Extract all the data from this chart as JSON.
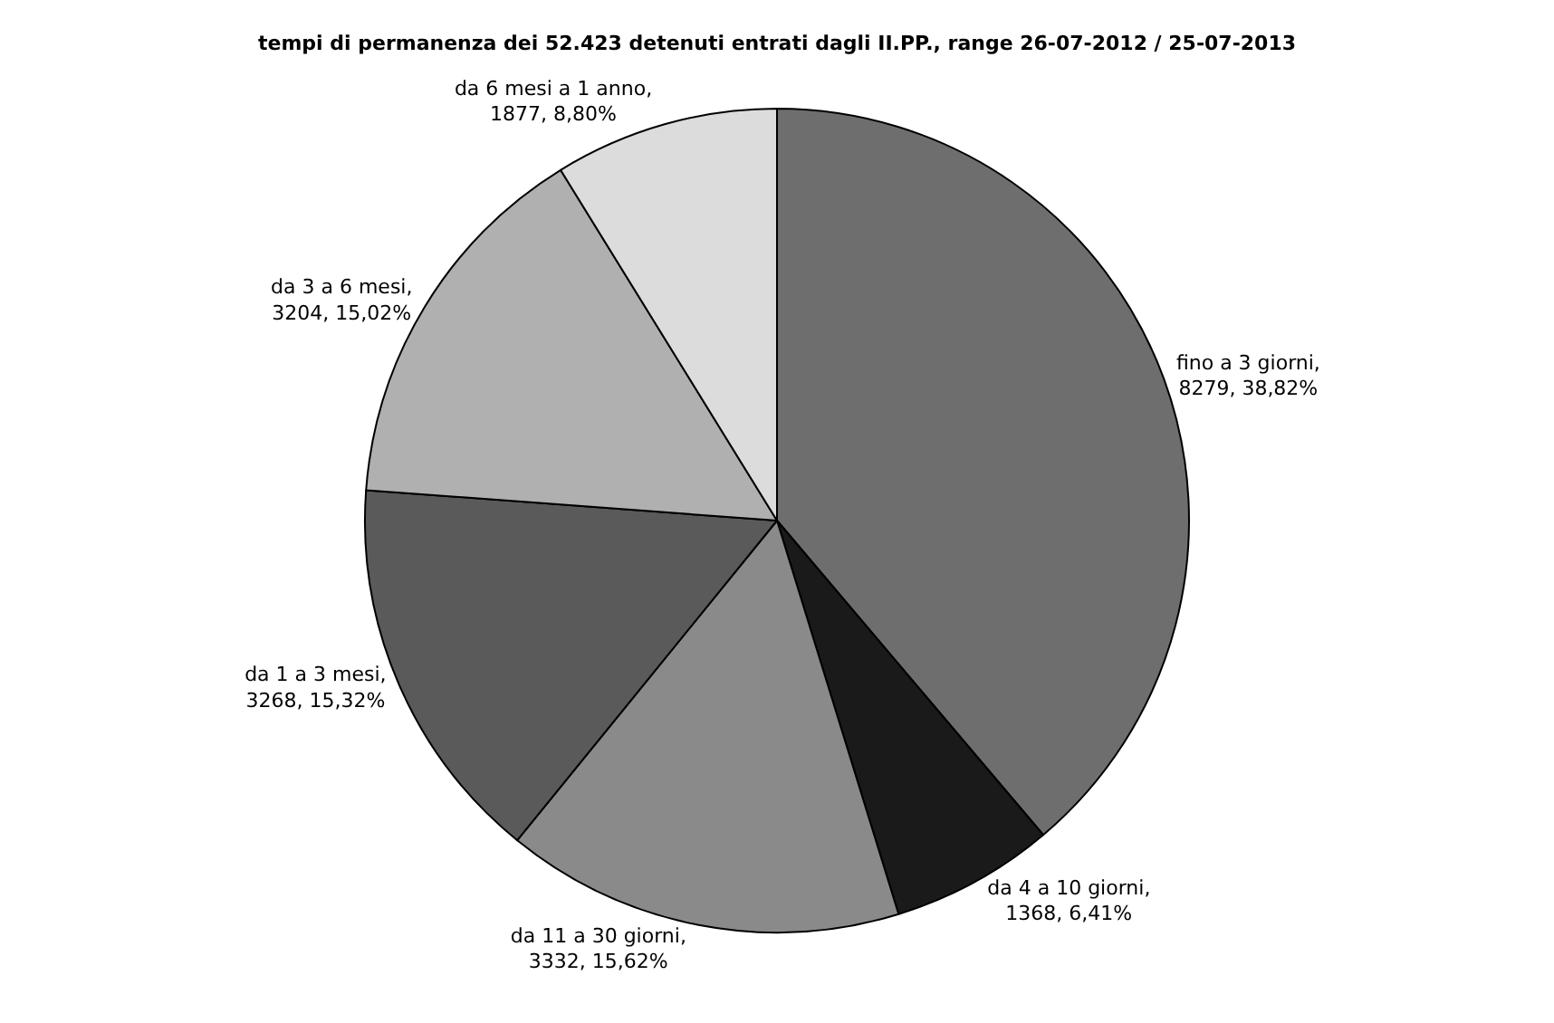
{
  "chart_data": {
    "type": "pie",
    "title": "tempi di permanenza dei 52.423 detenuti entrati dagli II.PP., range 26-07-2012 / 25-07-2013",
    "categories": [
      "fino a 3 giorni",
      "da 4 a 10 giorni",
      "da 11 a 30 giorni",
      "da 1 a 3 mesi",
      "da 3 a 6 mesi",
      "da 6 mesi a 1 anno"
    ],
    "values": [
      8279,
      1368,
      3332,
      3268,
      3204,
      1877
    ],
    "value_labels": [
      ", 8279, 38,82%",
      ", 1368, 6,41%",
      ", 3332, 15,62%",
      ", 3268, 15,32%",
      ", 3204, 15,02%",
      ", 1877, 8,80%"
    ],
    "colors": [
      "#6e6e6e",
      "#1a1a1a",
      "#8a8a8a",
      "#5a5a5a",
      "#b0b0b0",
      "#dcdcdc"
    ],
    "legend": false
  }
}
